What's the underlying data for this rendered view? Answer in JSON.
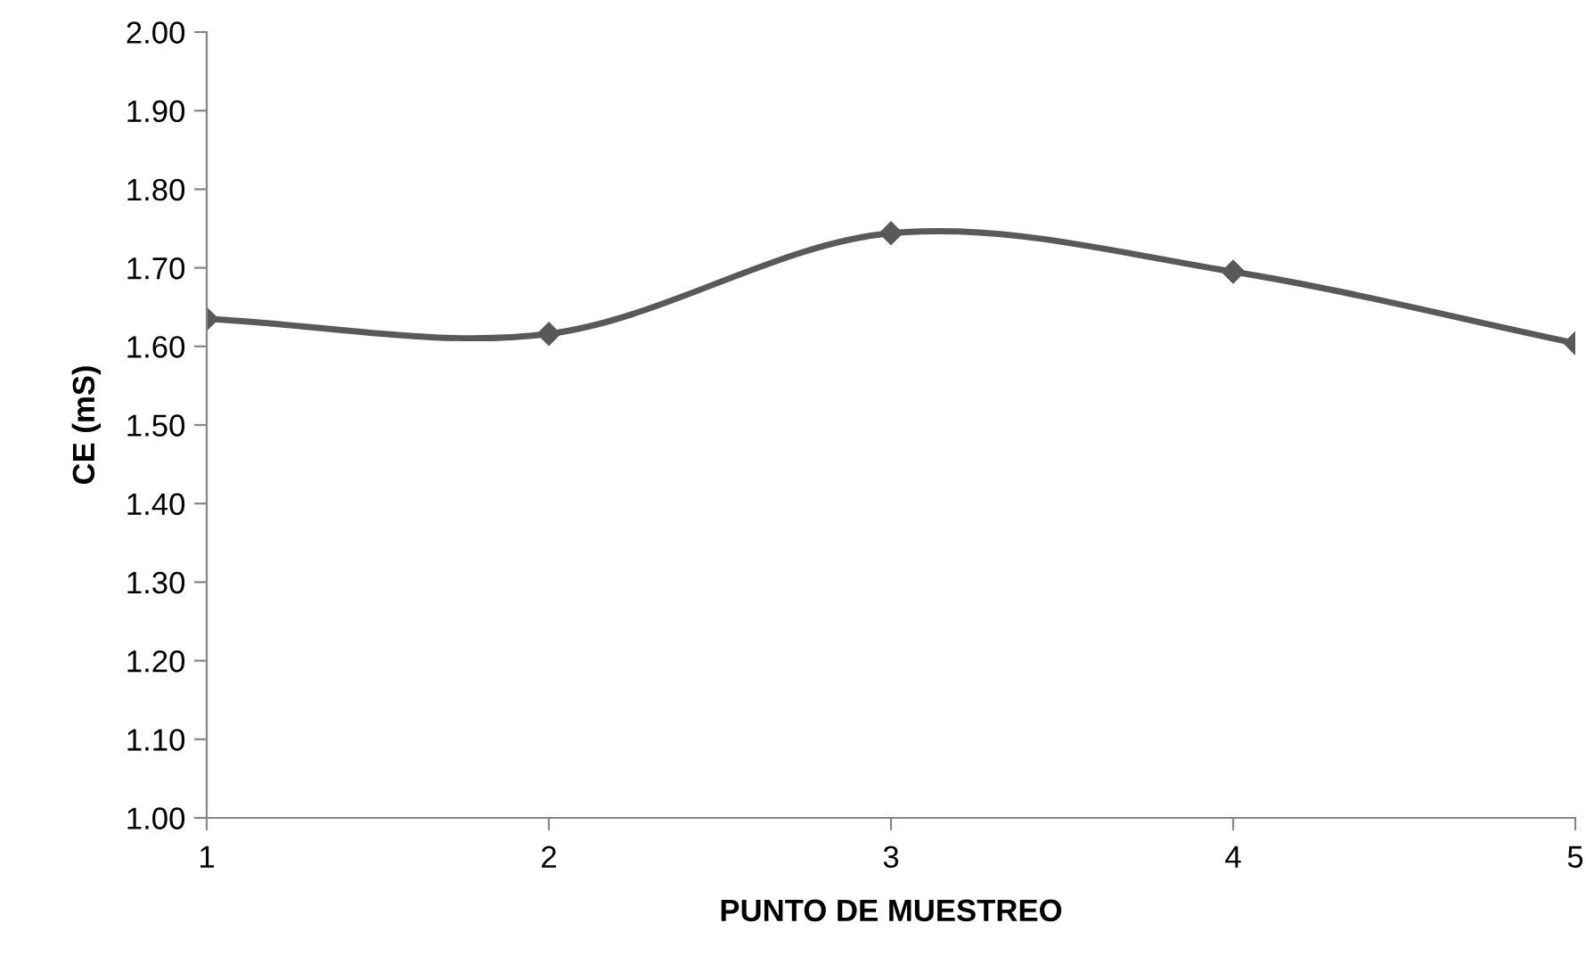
{
  "chart_data": {
    "type": "line",
    "xlabel": "PUNTO DE MUESTREO",
    "ylabel": "CE (mS)",
    "x": [
      1,
      2,
      3,
      4,
      5
    ],
    "series": [
      {
        "color": "#595959",
        "values": [
          1.635,
          1.616,
          1.744,
          1.695,
          1.604
        ]
      }
    ],
    "xlim": [
      1,
      5
    ],
    "xticks": [
      1,
      2,
      3,
      4,
      5
    ],
    "ylim": [
      1.0,
      2.0
    ],
    "yticks": [
      {
        "value": 1.0,
        "label": "1.00"
      },
      {
        "value": 1.1,
        "label": "1.10"
      },
      {
        "value": 1.2,
        "label": "1.20"
      },
      {
        "value": 1.3,
        "label": "1.30"
      },
      {
        "value": 1.4,
        "label": "1.40"
      },
      {
        "value": 1.5,
        "label": "1.50"
      },
      {
        "value": 1.6,
        "label": "1.60"
      },
      {
        "value": 1.7,
        "label": "1.70"
      },
      {
        "value": 1.8,
        "label": "1.80"
      },
      {
        "value": 1.9,
        "label": "1.90"
      },
      {
        "value": 2.0,
        "label": "2.00"
      }
    ],
    "grid": false,
    "legend": false,
    "marker": "diamond",
    "line_style": "solid"
  }
}
